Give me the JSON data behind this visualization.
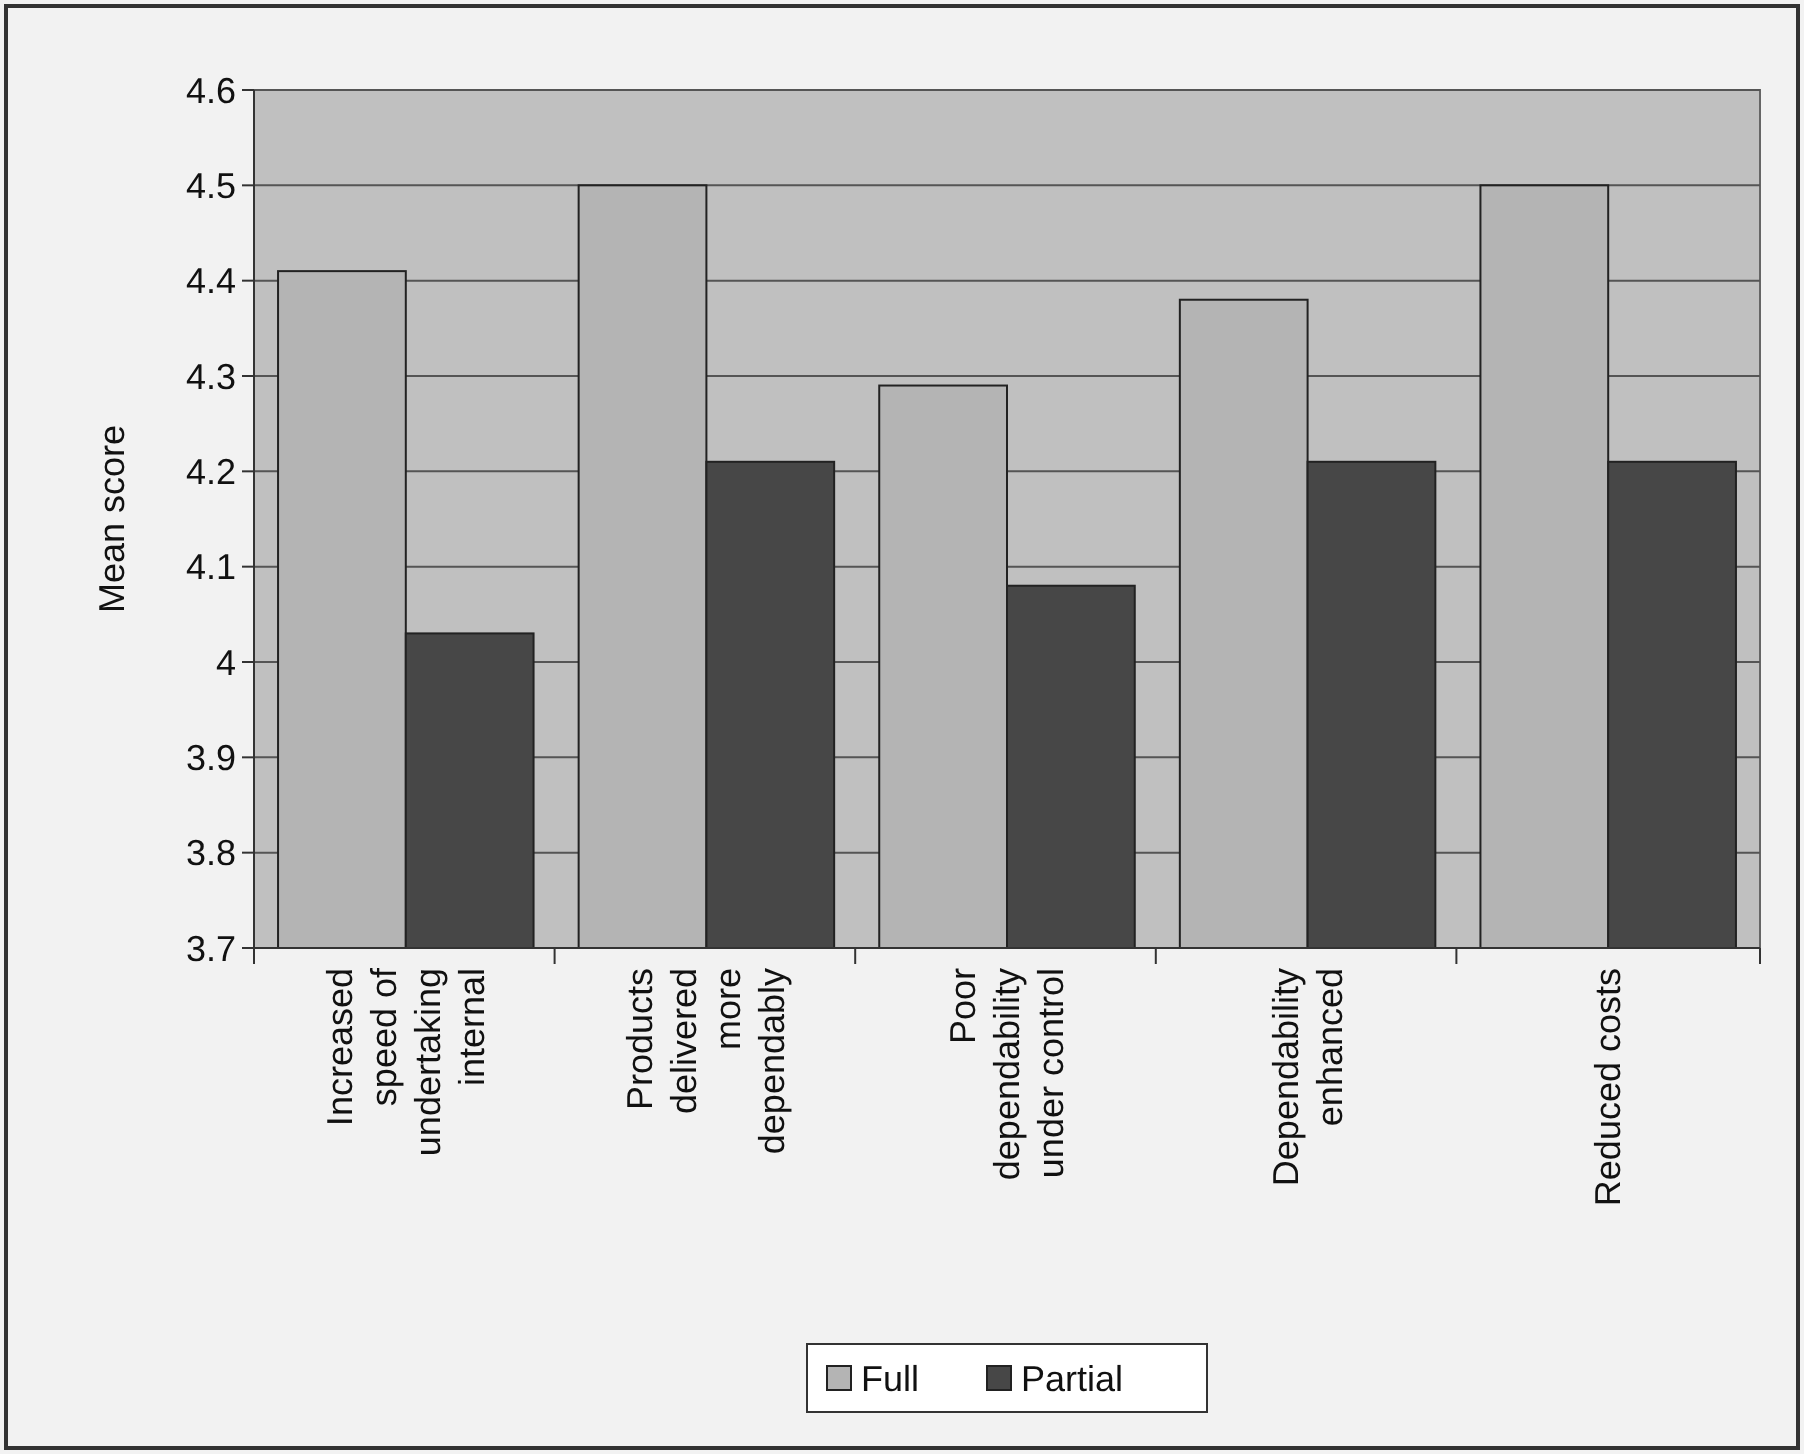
{
  "chart_data": {
    "type": "bar",
    "ylabel": "Mean score",
    "categories": [
      "Increased speed of undertaking internal",
      "Products delivered more dependably",
      "Poor dependability under control",
      "Dependability enhanced",
      "Reduced costs"
    ],
    "series": [
      {
        "name": "Full",
        "color": "#b4b4b4",
        "values": [
          4.41,
          4.5,
          4.29,
          4.38,
          4.5
        ]
      },
      {
        "name": "Partial",
        "color": "#474747",
        "values": [
          4.03,
          4.21,
          4.08,
          4.21,
          4.21
        ]
      }
    ],
    "ylim": [
      3.7,
      4.6
    ],
    "yticks": [
      3.7,
      3.8,
      3.9,
      4,
      4.1,
      4.2,
      4.3,
      4.4,
      4.5,
      4.6
    ],
    "grid": "y",
    "legend": "bottom"
  }
}
